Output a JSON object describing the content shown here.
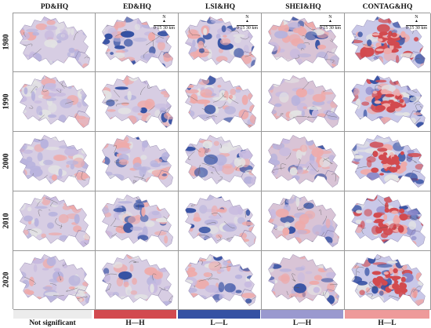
{
  "columns": [
    "PD&HQ",
    "ED&HQ",
    "LSI&HQ",
    "SHEI&HQ",
    "CONTAG&HQ"
  ],
  "rows": [
    "1980",
    "1990",
    "2000",
    "2010",
    "2020"
  ],
  "scale_bar": {
    "north": "N",
    "text": "0  15 30 km"
  },
  "legend": [
    {
      "label": "Not significant",
      "color": "#eeeeee"
    },
    {
      "label": "H—H",
      "color": "#d24a4f"
    },
    {
      "label": "L—L",
      "color": "#3551a3"
    },
    {
      "label": "L—H",
      "color": "#9a99cf"
    },
    {
      "label": "H—L",
      "color": "#ee9a9a"
    }
  ],
  "map_colors": {
    "not_significant": "#e3e3e3",
    "hh": "#d24a4f",
    "ll": "#3551a3",
    "lh": "#b8b3dd",
    "hl": "#eeaaaa"
  }
}
